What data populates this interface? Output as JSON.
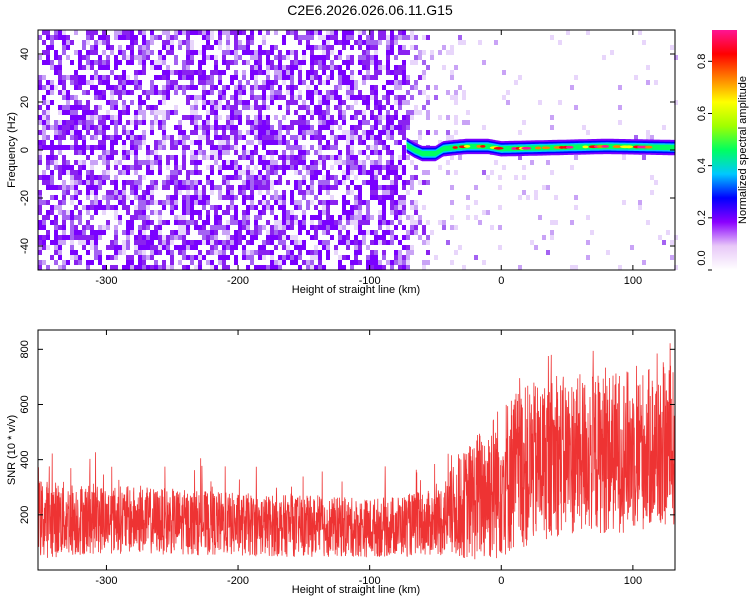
{
  "title": "C2E6.2026.026.06.11.G15",
  "chart_data": [
    {
      "type": "heatmap",
      "name": "spectrogram",
      "xlabel": "Height of straight line (km)",
      "ylabel": "Frequency (Hz)",
      "xlim": [
        -352,
        132
      ],
      "ylim": [
        -50,
        50
      ],
      "xticks": [
        -300,
        -200,
        -100,
        0,
        100
      ],
      "yticks": [
        -40,
        -20,
        0,
        20,
        40
      ],
      "tone": {
        "x_start": -72,
        "x_end": 132,
        "points": [
          [
            -72,
            2
          ],
          [
            -66,
            0
          ],
          [
            -60,
            -1.5
          ],
          [
            -50,
            -1.5
          ],
          [
            -44,
            0.5
          ],
          [
            -36,
            1
          ],
          [
            -26,
            1.5
          ],
          [
            -10,
            1.5
          ],
          [
            0,
            0.5
          ],
          [
            40,
            1
          ],
          [
            80,
            1.5
          ],
          [
            132,
            1
          ]
        ]
      },
      "colorbar": {
        "label": "Normalized spectral amplitude",
        "range": [
          0,
          0.92
        ],
        "ticks": [
          0.0,
          0.2,
          0.4,
          0.6,
          0.8
        ],
        "tick_labels": [
          "0.0",
          "0.2",
          "0.4",
          "0.6",
          "0.8"
        ],
        "colors": [
          "#ffffff",
          "#e8c8f8",
          "#8a00ff",
          "#0000ff",
          "#00c8ff",
          "#00ff60",
          "#a0ff00",
          "#ffff00",
          "#ff8000",
          "#ff0000",
          "#ff1493"
        ]
      }
    },
    {
      "type": "line",
      "name": "snr",
      "xlabel": "Height of straight line (km)",
      "ylabel": "SNR (10 * v/v)",
      "xlim": [
        -352,
        132
      ],
      "ylim": [
        0,
        870
      ],
      "xticks": [
        -300,
        -200,
        -100,
        0,
        100
      ],
      "yticks": [
        200,
        400,
        600,
        800
      ],
      "color": "#ee3333",
      "envelope": [
        {
          "x": -352,
          "lo": 40,
          "hi": 330
        },
        {
          "x": -300,
          "lo": 60,
          "hi": 310
        },
        {
          "x": -200,
          "lo": 50,
          "hi": 280
        },
        {
          "x": -100,
          "lo": 45,
          "hi": 260
        },
        {
          "x": -50,
          "lo": 50,
          "hi": 290
        },
        {
          "x": -30,
          "lo": 40,
          "hi": 420
        },
        {
          "x": -10,
          "lo": 20,
          "hi": 560
        },
        {
          "x": 10,
          "lo": 60,
          "hi": 660
        },
        {
          "x": 40,
          "lo": 120,
          "hi": 700
        },
        {
          "x": 80,
          "lo": 130,
          "hi": 720
        },
        {
          "x": 132,
          "lo": 150,
          "hi": 740
        }
      ]
    }
  ]
}
